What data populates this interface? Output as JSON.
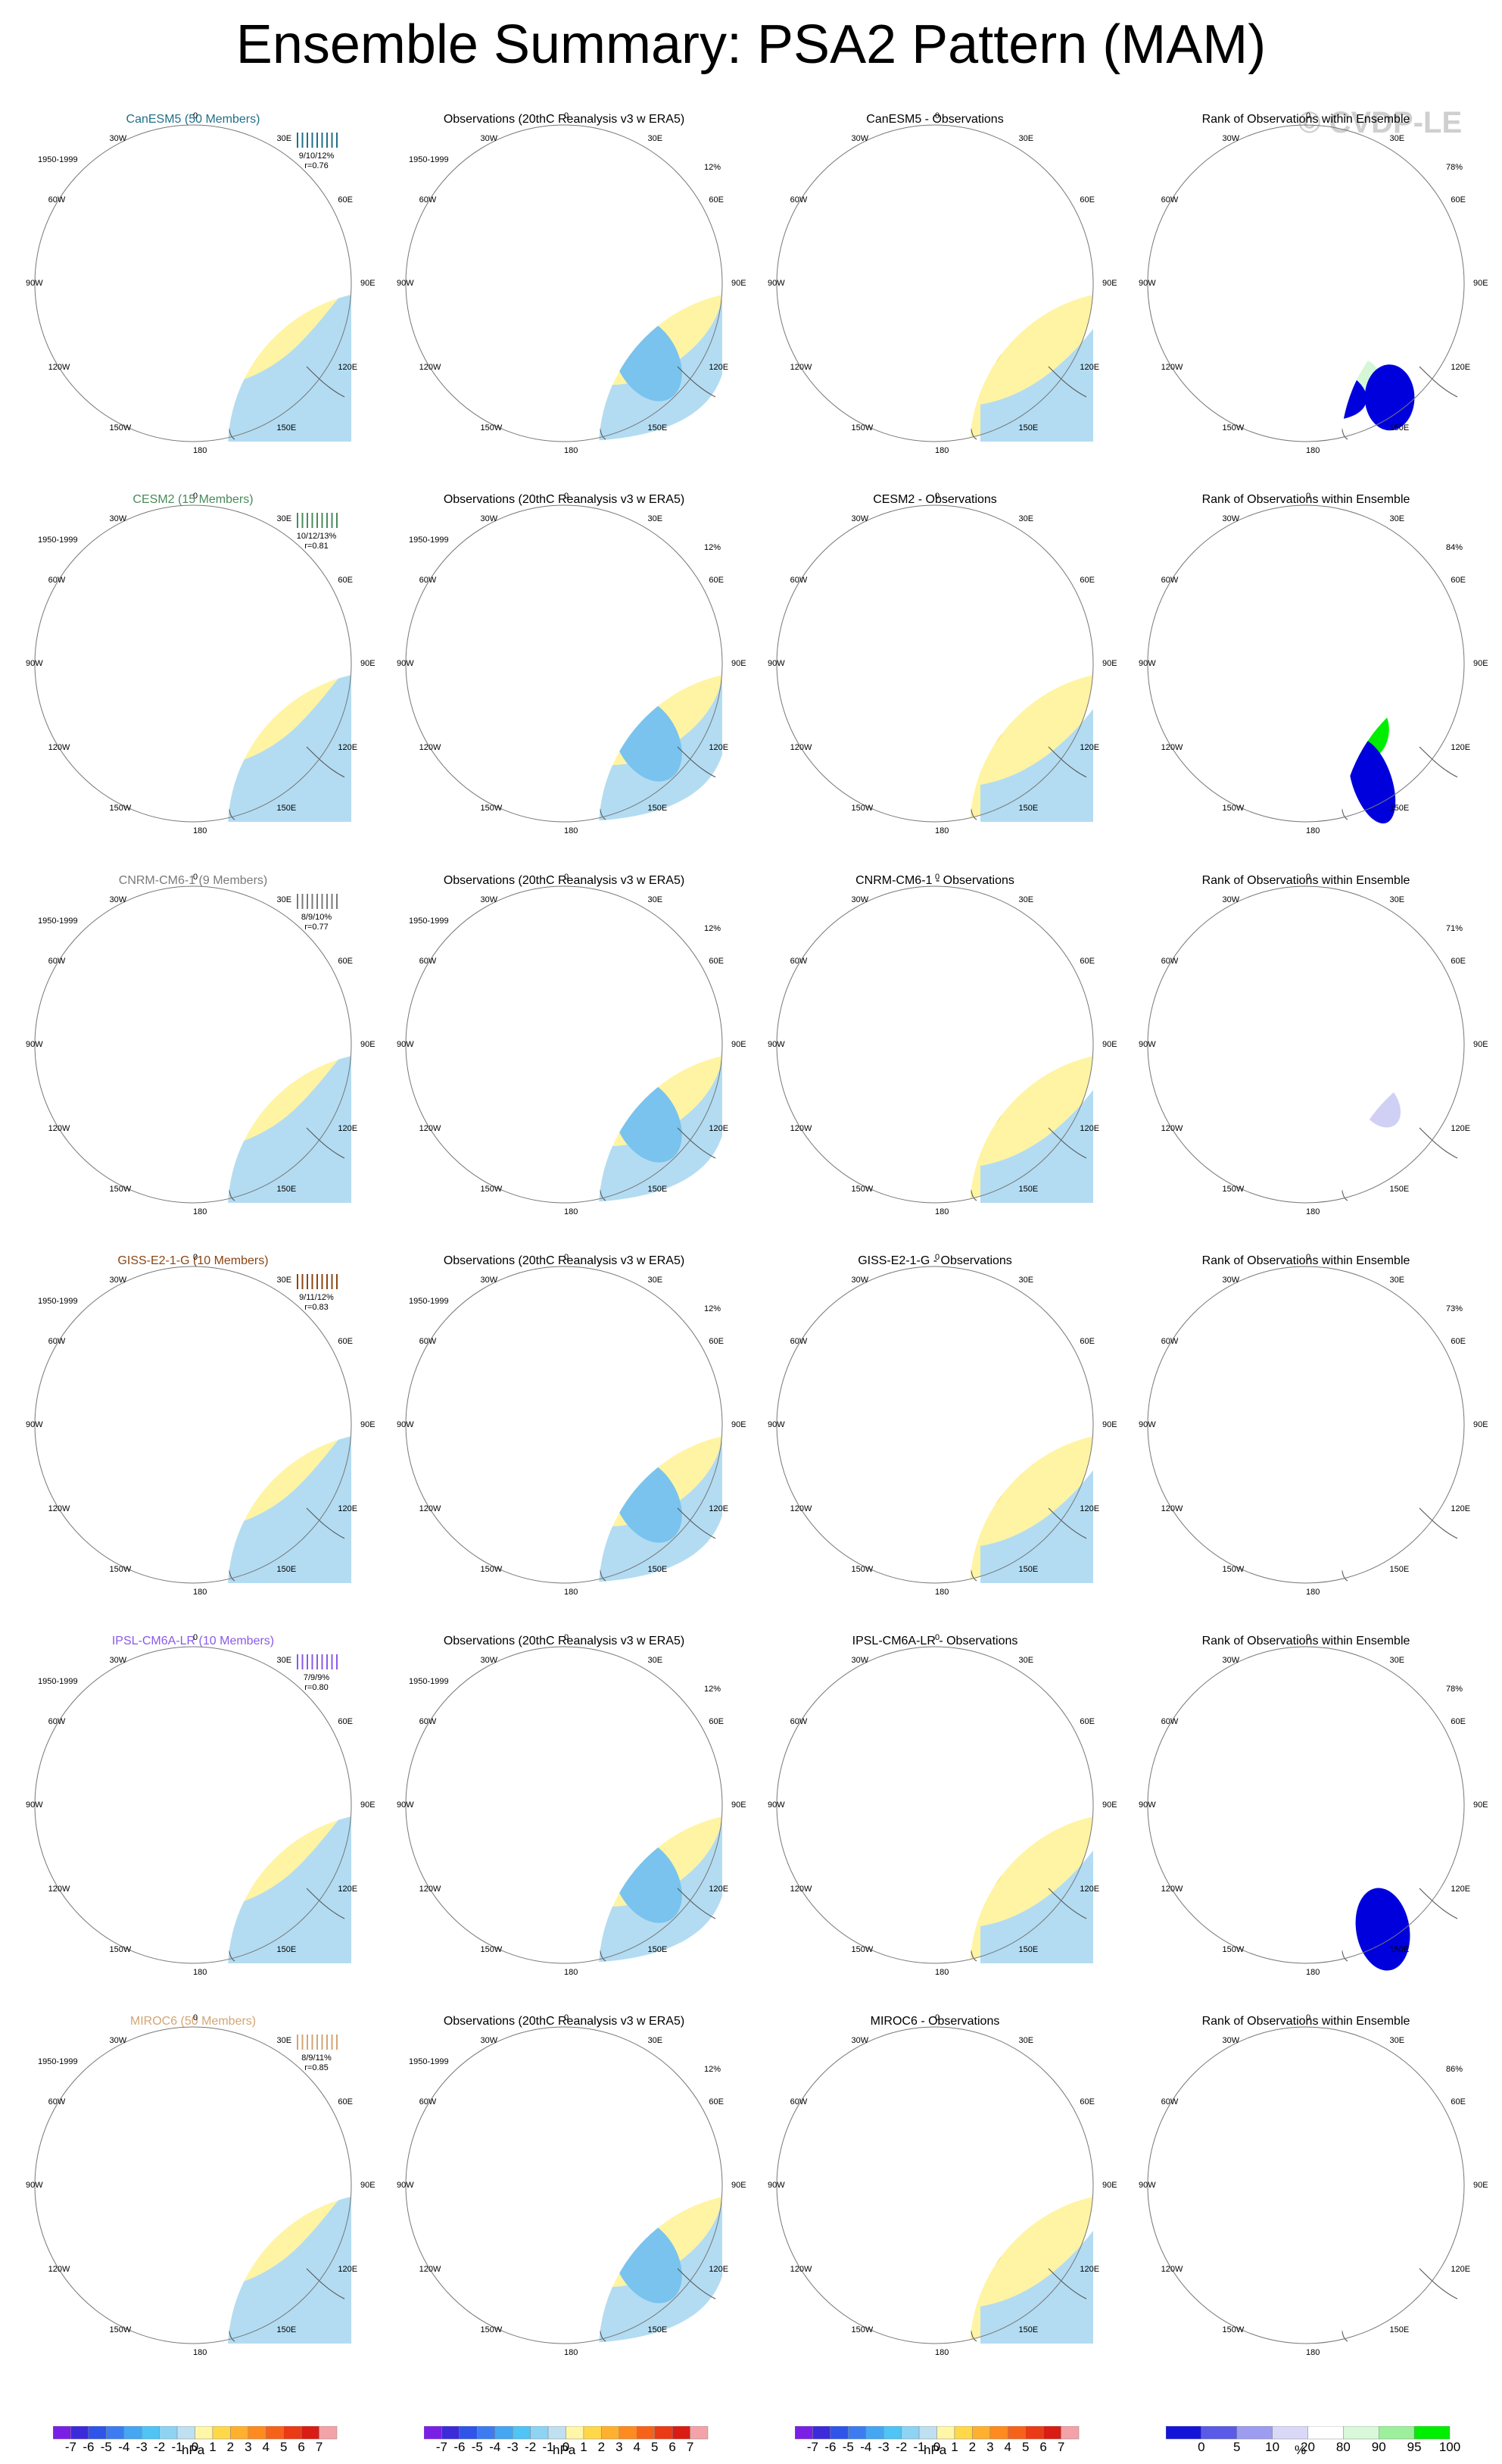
{
  "title": "Ensemble Summary: PSA2 Pattern (MAM)",
  "watermark": "© CVDP-LE",
  "period": "1950-1999",
  "obs_title": "Observations (20thC Reanalysis v3 w ERA5)",
  "obs_variance": "12%",
  "rank_title": "Rank of Observations within Ensemble",
  "lon_labels": [
    "0",
    "30E",
    "60E",
    "90E",
    "120E",
    "150E",
    "180",
    "150W",
    "120W",
    "90W",
    "60W",
    "30W"
  ],
  "colors": {
    "pressure_scale": [
      "#7a1fe6",
      "#3b2bd9",
      "#2f55e8",
      "#3d7cf0",
      "#45a6f2",
      "#4fc4f5",
      "#8fd3f2",
      "#bfe0f0",
      "#fff6a8",
      "#ffd84a",
      "#ffb02e",
      "#ff8a1f",
      "#f7621a",
      "#ea3a16",
      "#d91c14",
      "#f3a3a8"
    ],
    "rank_scale": [
      "#1414d9",
      "#5a5ae6",
      "#9c9cf0",
      "#d9d9f7",
      "#ffffff",
      "#d9f7d9",
      "#9cf09c",
      "#00ee00"
    ],
    "ocean": "#b3dcf2",
    "positive": "#fff4a3",
    "negative": "#79c3ee",
    "strong_negative": "#19a8ef",
    "positive_mid": "#ffce3a",
    "positive_strong": "#ff8c1a",
    "rank_high": "#00ee00",
    "rank_low": "#0000dd",
    "rank_mid_high": "#d6f7d6",
    "rank_mid_low": "#d0d0f5"
  },
  "colorbars": [
    {
      "labels": [
        "-7",
        "-6",
        "-5",
        "-4",
        "-3",
        "-2",
        "-1",
        "0",
        "1",
        "2",
        "3",
        "4",
        "5",
        "6",
        "7"
      ],
      "units": "hPa"
    },
    {
      "labels": [
        "-7",
        "-6",
        "-5",
        "-4",
        "-3",
        "-2",
        "-1",
        "0",
        "1",
        "2",
        "3",
        "4",
        "5",
        "6",
        "7"
      ],
      "units": "hPa"
    },
    {
      "labels": [
        "-7",
        "-6",
        "-5",
        "-4",
        "-3",
        "-2",
        "-1",
        "0",
        "1",
        "2",
        "3",
        "4",
        "5",
        "6",
        "7"
      ],
      "units": "hPa"
    },
    {
      "labels": [
        "0",
        "5",
        "10",
        "20",
        "80",
        "90",
        "95",
        "100"
      ],
      "units": "%"
    }
  ],
  "chart_data": {
    "type": "heatmap",
    "title": "Ensemble Summary: PSA2 Pattern (MAM)",
    "period": "1950-1999",
    "units": "hPa",
    "rank_units": "%",
    "contour_levels": [
      -7,
      -6,
      -5,
      -4,
      -3,
      -2,
      -1,
      0,
      1,
      2,
      3,
      4,
      5,
      6,
      7
    ],
    "rank_levels": [
      0,
      5,
      10,
      20,
      80,
      90,
      95,
      100
    ],
    "observations_pattern_variance": "12%",
    "models": [
      {
        "name": "CanESM5 (50 Members)",
        "color": "#1f6f8b",
        "pct": "9/10/12%",
        "r": "r=0.76",
        "obs_diff_title": "CanESM5 - Observations",
        "rank_pct": "78%"
      },
      {
        "name": "CESM2 (15 Members)",
        "color": "#4a8a5a",
        "pct": "10/12/13%",
        "r": "r=0.81",
        "obs_diff_title": "CESM2 - Observations",
        "rank_pct": "84%"
      },
      {
        "name": "CNRM-CM6-1 (9 Members)",
        "color": "#7a7a7a",
        "pct": "8/9/10%",
        "r": "r=0.77",
        "obs_diff_title": "CNRM-CM6-1 - Observations",
        "rank_pct": "71%"
      },
      {
        "name": "GISS-E2-1-G (10 Members)",
        "color": "#8b4513",
        "pct": "9/11/12%",
        "r": "r=0.83",
        "obs_diff_title": "GISS-E2-1-G - Observations",
        "rank_pct": "73%"
      },
      {
        "name": "IPSL-CM6A-LR (10 Members)",
        "color": "#8a5ae6",
        "pct": "7/9/9%",
        "r": "r=0.80",
        "obs_diff_title": "IPSL-CM6A-LR - Observations",
        "rank_pct": "78%"
      },
      {
        "name": "MIROC6 (50 Members)",
        "color": "#d4a574",
        "pct": "8/9/11%",
        "r": "r=0.85",
        "obs_diff_title": "MIROC6 - Observations",
        "rank_pct": "86%"
      }
    ]
  }
}
